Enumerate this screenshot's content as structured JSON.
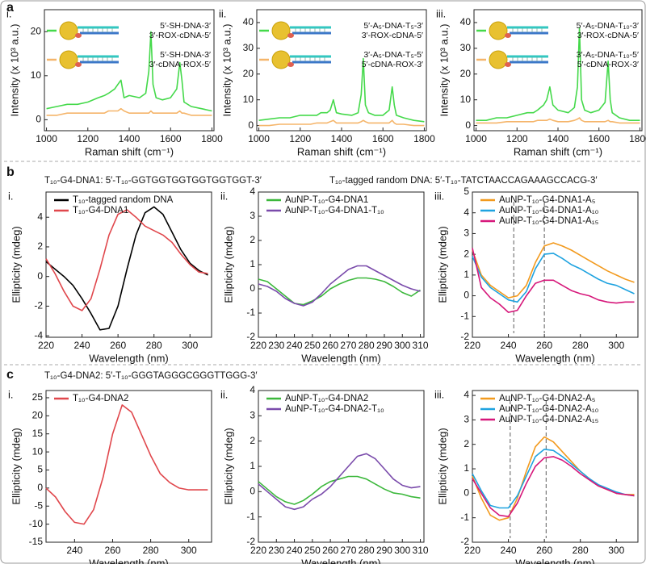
{
  "sections": [
    {
      "label": "a",
      "sequences": []
    },
    {
      "label": "b",
      "sequences": [
        "T₁₀-G4-DNA1: 5′-T₁₀-GGTGGTGGTGGTGGTGGT-3′",
        "T₁₀-tagged random DNA: 5′-T₁₀-TATCTAACCAGAAAGCCACG-3′"
      ]
    },
    {
      "label": "c",
      "sequences": [
        "T₁₀-G4-DNA2: 5′-T₁₀-GGGTAGGGCGGGTTGGG-3′"
      ]
    }
  ],
  "chart_data": [
    {
      "type": "line",
      "panel_label": "i.",
      "xlabel": "Raman shift (cm⁻¹)",
      "ylabel": "Intensity (x 10³ a.u.)",
      "xlim": [
        990,
        1810
      ],
      "ylim": [
        -2.5,
        25
      ],
      "xticks": [
        1000,
        1200,
        1400,
        1600,
        1800
      ],
      "yticks": [
        0,
        10,
        20
      ],
      "legend": "upper left",
      "x": [
        1000,
        1050,
        1100,
        1150,
        1200,
        1250,
        1280,
        1300,
        1330,
        1345,
        1360,
        1375,
        1400,
        1450,
        1480,
        1495,
        1505,
        1515,
        1530,
        1560,
        1600,
        1630,
        1645,
        1655,
        1665,
        1700,
        1750,
        1800
      ],
      "series": [
        {
          "label_lines": [
            "5′-SH-DNA-3′",
            "3′-ROX-cDNA-5′"
          ],
          "color": "#44d94a",
          "values": [
            2.5,
            3,
            3.5,
            3.5,
            4,
            5,
            5.5,
            6,
            7,
            8,
            9,
            5,
            5.5,
            5,
            6,
            11,
            20,
            8,
            5,
            4.5,
            5,
            7,
            13,
            9,
            4,
            3,
            2.5,
            2
          ]
        },
        {
          "label_lines": [
            "5′-SH-DNA-3′",
            "3′-cDNA-ROX-5′"
          ],
          "color": "#f5b56a",
          "values": [
            1,
            1,
            1.5,
            1.5,
            1.5,
            1.5,
            1.5,
            2,
            2,
            2,
            2.5,
            2,
            1.5,
            1.5,
            1.5,
            1.5,
            2,
            1.5,
            1.5,
            1.5,
            1.5,
            1.5,
            2,
            1.5,
            1.5,
            1,
            1,
            1
          ]
        }
      ]
    },
    {
      "type": "line",
      "panel_label": "ii.",
      "xlabel": "Raman shift (cm⁻¹)",
      "ylabel": "Intensity (x 10³ a.u.)",
      "xlim": [
        990,
        1810
      ],
      "ylim": [
        -2,
        45
      ],
      "xticks": [
        1000,
        1200,
        1400,
        1600,
        1800
      ],
      "yticks": [
        0,
        10,
        20,
        30,
        40
      ],
      "legend": "upper left",
      "x": [
        1000,
        1050,
        1100,
        1150,
        1200,
        1250,
        1280,
        1300,
        1330,
        1345,
        1360,
        1375,
        1400,
        1450,
        1480,
        1495,
        1505,
        1515,
        1530,
        1560,
        1600,
        1630,
        1645,
        1655,
        1665,
        1700,
        1750,
        1800
      ],
      "series": [
        {
          "label_lines": [
            "5′-A₅-DNA-T₅-3′",
            "3′-ROX-cDNA-5′"
          ],
          "color": "#44d94a",
          "values": [
            2,
            2.5,
            3,
            3,
            4,
            4,
            4,
            5,
            5,
            6,
            10,
            5,
            4.5,
            4,
            5,
            12,
            26,
            8,
            5,
            4,
            4,
            6,
            15,
            8,
            4,
            3,
            2,
            1.5
          ]
        },
        {
          "label_lines": [
            "3′-A₅-DNA-T₅-5′",
            "5′-cDNA-ROX-3′"
          ],
          "color": "#f5b56a",
          "values": [
            0,
            0,
            0.5,
            0.5,
            0.5,
            0.5,
            1,
            1,
            1,
            1.5,
            2,
            1,
            1,
            1,
            1,
            1.5,
            2,
            1.5,
            1,
            1,
            1,
            1,
            2,
            1,
            0.5,
            0.5,
            0,
            0
          ]
        }
      ]
    },
    {
      "type": "line",
      "panel_label": "iii.",
      "xlabel": "Raman shift (cm⁻¹)",
      "ylabel": "Intensity (x 10³ a.u.)",
      "xlim": [
        990,
        1810
      ],
      "ylim": [
        -2,
        45
      ],
      "xticks": [
        1000,
        1200,
        1400,
        1600,
        1800
      ],
      "yticks": [
        0,
        10,
        20,
        30,
        40
      ],
      "legend": "upper left",
      "x": [
        1000,
        1050,
        1100,
        1150,
        1200,
        1250,
        1280,
        1300,
        1330,
        1345,
        1360,
        1375,
        1400,
        1450,
        1480,
        1495,
        1505,
        1515,
        1530,
        1560,
        1600,
        1630,
        1645,
        1655,
        1665,
        1700,
        1750,
        1800
      ],
      "series": [
        {
          "label_lines": [
            "5′-A₅-DNA-T₁₀-3′",
            "3′-ROX-cDNA-5′"
          ],
          "color": "#44d94a",
          "values": [
            2,
            2,
            3,
            3,
            4,
            5,
            5,
            6,
            8,
            10,
            15,
            8,
            6,
            5,
            7,
            15,
            38,
            10,
            6,
            5,
            6,
            9,
            25,
            10,
            5,
            3,
            2,
            2
          ]
        },
        {
          "label_lines": [
            "3′-A₅-DNA-T₁₀-5′",
            "5′-cDNA-ROX-3′"
          ],
          "color": "#f5b56a",
          "values": [
            1,
            1,
            1,
            1.5,
            1.5,
            1.5,
            1.5,
            2,
            2,
            2,
            2.5,
            2,
            1.5,
            1.5,
            2,
            2.5,
            3,
            2,
            1.5,
            1.5,
            1.5,
            1.5,
            2,
            1.5,
            1.5,
            1,
            1,
            1
          ]
        }
      ]
    },
    {
      "type": "line",
      "panel_label": "i.",
      "xlabel": "Wavelength (nm)",
      "ylabel": "Ellipticity (mdeg)",
      "xlim": [
        220,
        312
      ],
      "ylim": [
        -4.1,
        5.7
      ],
      "xticks": [
        220,
        240,
        260,
        280,
        300
      ],
      "yticks": [
        -4,
        -2,
        0,
        2,
        4
      ],
      "legend": "upper left",
      "x": [
        220,
        225,
        230,
        235,
        240,
        245,
        250,
        255,
        260,
        265,
        270,
        275,
        280,
        285,
        290,
        295,
        300,
        305,
        310
      ],
      "series": [
        {
          "name": "T₁₀-tagged random DNA",
          "color": "#000000",
          "values": [
            1.0,
            0.5,
            0,
            -0.6,
            -1.5,
            -2.5,
            -3.6,
            -3.5,
            -2,
            0.5,
            2.8,
            4.3,
            4.7,
            4.2,
            3,
            1.8,
            0.9,
            0.4,
            0.1
          ]
        },
        {
          "name": "T₁₀-G4-DNA1",
          "color": "#e0474c",
          "values": [
            1.2,
            0.2,
            -1.0,
            -2.0,
            -2.3,
            -1.5,
            0.5,
            2.8,
            4.2,
            4.5,
            4.0,
            3.4,
            3.1,
            2.8,
            2.3,
            1.5,
            0.8,
            0.3,
            0.2
          ]
        }
      ]
    },
    {
      "type": "line",
      "panel_label": "ii.",
      "xlabel": "Wavelength (nm)",
      "ylabel": "Ellipticity (mdeg)",
      "xlim": [
        220,
        312
      ],
      "ylim": [
        -2,
        4
      ],
      "xticks": [
        220,
        230,
        240,
        250,
        260,
        270,
        280,
        290,
        300,
        310
      ],
      "yticks": [
        -2,
        -1,
        0,
        1,
        2,
        3,
        4
      ],
      "legend": "upper left",
      "x": [
        220,
        225,
        230,
        235,
        240,
        245,
        250,
        255,
        260,
        265,
        270,
        275,
        280,
        285,
        290,
        295,
        300,
        305,
        310
      ],
      "series": [
        {
          "name": "AuNP-T₁₀-G4-DNA1",
          "color": "#3cb83c",
          "values": [
            0.4,
            0.3,
            0,
            -0.3,
            -0.6,
            -0.65,
            -0.5,
            -0.3,
            0,
            0.2,
            0.35,
            0.45,
            0.45,
            0.4,
            0.3,
            0.1,
            -0.15,
            -0.3,
            -0.05
          ]
        },
        {
          "name": "AuNP-T₁₀-G4-DNA1-T₁₀",
          "color": "#7a4bab",
          "values": [
            0.2,
            0.1,
            -0.1,
            -0.4,
            -0.6,
            -0.7,
            -0.55,
            -0.2,
            0.2,
            0.5,
            0.8,
            0.95,
            0.95,
            0.75,
            0.55,
            0.35,
            0.15,
            0,
            -0.1
          ]
        }
      ]
    },
    {
      "type": "line",
      "panel_label": "iii.",
      "xlabel": "Wavelength (nm)",
      "ylabel": "Ellipticity (mdeg)",
      "xlim": [
        220,
        312
      ],
      "ylim": [
        -2,
        5
      ],
      "xticks": [
        220,
        240,
        260,
        280,
        300
      ],
      "yticks": [
        -2,
        -1,
        0,
        1,
        2,
        3,
        4,
        5
      ],
      "legend": "upper left",
      "vlines": [
        243,
        260
      ],
      "x": [
        220,
        225,
        230,
        235,
        240,
        245,
        250,
        255,
        260,
        265,
        270,
        275,
        280,
        285,
        290,
        295,
        300,
        305,
        310
      ],
      "series": [
        {
          "name": "AuNP-T₁₀-G4-DNA1-A₅",
          "color": "#f29a1e",
          "values": [
            2.2,
            1.0,
            0.5,
            0.2,
            -0.1,
            0,
            0.5,
            1.6,
            2.4,
            2.55,
            2.4,
            2.2,
            1.95,
            1.7,
            1.45,
            1.2,
            1.0,
            0.8,
            0.65
          ]
        },
        {
          "name": "AuNP-T₁₀-G4-DNA1-A₁₀",
          "color": "#1fa3e0",
          "values": [
            1.9,
            0.9,
            0.4,
            0.1,
            -0.2,
            -0.3,
            0.2,
            1.3,
            2.0,
            2.05,
            1.8,
            1.5,
            1.3,
            1.05,
            0.8,
            0.6,
            0.5,
            0.3,
            0.1
          ]
        },
        {
          "name": "AuNP-T₁₀-G4-DNA1-A₁₅",
          "color": "#d6177a",
          "values": [
            2.3,
            0.4,
            -0.1,
            -0.4,
            -0.8,
            -0.7,
            0,
            0.6,
            0.75,
            0.75,
            0.5,
            0.25,
            0.1,
            0,
            -0.2,
            -0.3,
            -0.35,
            -0.3,
            -0.3
          ]
        }
      ]
    },
    {
      "type": "line",
      "panel_label": "i.",
      "xlabel": "Wavelength (nm)",
      "ylabel": "Ellipticity (mdeg)",
      "xlim": [
        225,
        312
      ],
      "ylim": [
        -15,
        27
      ],
      "xticks": [
        240,
        260,
        280,
        300
      ],
      "yticks": [
        -15,
        -10,
        -5,
        0,
        5,
        10,
        15,
        20,
        25
      ],
      "legend": "upper left",
      "x": [
        225,
        230,
        235,
        240,
        245,
        250,
        255,
        260,
        265,
        270,
        275,
        280,
        285,
        290,
        295,
        300,
        305,
        310
      ],
      "series": [
        {
          "name": "T₁₀-G4-DNA2",
          "color": "#e0474c",
          "values": [
            0,
            -2.5,
            -6.5,
            -9.5,
            -10,
            -6,
            3,
            15,
            23,
            21,
            15,
            9,
            4,
            1.5,
            0,
            -0.5,
            -0.5,
            -0.5
          ]
        }
      ]
    },
    {
      "type": "line",
      "panel_label": "ii.",
      "xlabel": "Wavelength (nm)",
      "ylabel": "Ellipticity (mdeg)",
      "xlim": [
        220,
        312
      ],
      "ylim": [
        -2,
        4
      ],
      "xticks": [
        220,
        230,
        240,
        250,
        260,
        270,
        280,
        290,
        300,
        310
      ],
      "yticks": [
        -2,
        -1,
        0,
        1,
        2,
        3,
        4
      ],
      "legend": "upper left",
      "x": [
        220,
        225,
        230,
        235,
        240,
        245,
        250,
        255,
        260,
        265,
        270,
        275,
        280,
        285,
        290,
        295,
        300,
        305,
        310
      ],
      "series": [
        {
          "name": "AuNP-T₁₀-G4-DNA2",
          "color": "#3cb83c",
          "values": [
            0.4,
            0.1,
            -0.2,
            -0.4,
            -0.5,
            -0.35,
            -0.1,
            0.2,
            0.4,
            0.5,
            0.6,
            0.6,
            0.5,
            0.3,
            0.1,
            -0.05,
            -0.1,
            -0.2,
            -0.25
          ]
        },
        {
          "name": "AuNP-T₁₀-G4-DNA2-T₁₀",
          "color": "#7a4bab",
          "values": [
            0.3,
            0,
            -0.3,
            -0.6,
            -0.7,
            -0.6,
            -0.3,
            -0.1,
            0.2,
            0.6,
            1.0,
            1.4,
            1.5,
            1.3,
            0.9,
            0.5,
            0.25,
            0.15,
            0.2
          ]
        }
      ]
    },
    {
      "type": "line",
      "panel_label": "iii.",
      "xlabel": "Wavelength (nm)",
      "ylabel": "Ellipticity (mdeg)",
      "xlim": [
        220,
        312
      ],
      "ylim": [
        -2,
        4.2
      ],
      "xticks": [
        220,
        240,
        260,
        280,
        300
      ],
      "yticks": [
        -2,
        -1,
        0,
        1,
        2,
        3,
        4
      ],
      "legend": "upper left",
      "vlines": [
        241,
        261
      ],
      "x": [
        220,
        225,
        230,
        235,
        240,
        245,
        250,
        255,
        260,
        265,
        270,
        275,
        280,
        285,
        290,
        295,
        300,
        305,
        310
      ],
      "series": [
        {
          "name": "AuNP-T₁₀-G4-DNA2-A₅",
          "color": "#f29a1e",
          "values": [
            0.7,
            -0.2,
            -0.9,
            -1.1,
            -1.0,
            -0.2,
            0.9,
            1.9,
            2.3,
            2.1,
            1.7,
            1.3,
            0.9,
            0.6,
            0.3,
            0.15,
            0,
            -0.05,
            -0.05
          ]
        },
        {
          "name": "AuNP-T₁₀-G4-DNA2-A₁₀",
          "color": "#1fa3e0",
          "values": [
            0.8,
            0.1,
            -0.5,
            -0.6,
            -0.6,
            -0.1,
            0.7,
            1.5,
            1.8,
            1.75,
            1.5,
            1.2,
            0.9,
            0.6,
            0.35,
            0.2,
            0.05,
            -0.05,
            -0.1
          ]
        },
        {
          "name": "AuNP-T₁₀-G4-DNA2-A₁₅",
          "color": "#d6177a",
          "values": [
            0.6,
            0,
            -0.6,
            -0.9,
            -0.95,
            -0.4,
            0.4,
            1.1,
            1.45,
            1.5,
            1.35,
            1.1,
            0.8,
            0.55,
            0.3,
            0.15,
            0,
            -0.05,
            -0.1
          ]
        }
      ]
    }
  ]
}
